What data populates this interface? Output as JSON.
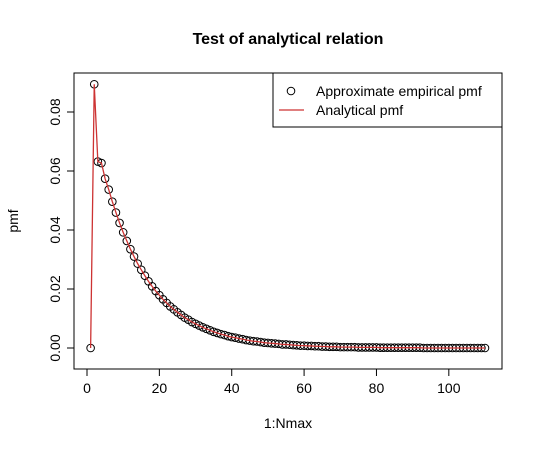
{
  "chart_data": {
    "type": "scatter",
    "title": "Test of analytical relation",
    "xlabel": "1:Nmax",
    "ylabel": "pmf",
    "xlim": [
      0,
      110
    ],
    "ylim": [
      0,
      0.09
    ],
    "xticks": [
      "0",
      "20",
      "40",
      "60",
      "80",
      "100"
    ],
    "yticks": [
      "0.00",
      "0.02",
      "0.04",
      "0.06",
      "0.08"
    ],
    "legend": {
      "placement": "top-right",
      "entries": [
        "Approximate empirical pmf",
        "Analytical pmf"
      ]
    },
    "series": [
      {
        "name": "Approximate empirical pmf",
        "marker": "open-circle",
        "color": "#000000",
        "x": [
          1,
          2,
          3,
          4,
          5,
          6,
          7,
          8,
          9,
          10,
          11,
          12,
          13,
          14,
          15,
          16,
          17,
          18,
          19,
          20,
          21,
          22,
          23,
          24,
          25,
          26,
          27,
          28,
          29,
          30,
          31,
          32,
          33,
          34,
          35,
          36,
          37,
          38,
          39,
          40,
          41,
          42,
          43,
          44,
          45,
          46,
          47,
          48,
          49,
          50,
          51,
          52,
          53,
          54,
          55,
          56,
          57,
          58,
          59,
          60,
          61,
          62,
          63,
          64,
          65,
          66,
          67,
          68,
          69,
          70,
          71,
          72,
          73,
          74,
          75,
          76,
          77,
          78,
          79,
          80,
          81,
          82,
          83,
          84,
          85,
          86,
          87,
          88,
          89,
          90,
          91,
          92,
          93,
          94,
          95,
          96,
          97,
          98,
          99,
          100,
          101,
          102,
          103,
          104,
          105,
          106,
          107,
          108,
          109,
          110
        ],
        "y": [
          0,
          0.0894,
          0.0632,
          0.0627,
          0.0574,
          0.0537,
          0.0496,
          0.0459,
          0.0424,
          0.0392,
          0.0363,
          0.0335,
          0.031,
          0.0286,
          0.0265,
          0.0245,
          0.0226,
          0.0209,
          0.0193,
          0.0179,
          0.0165,
          0.0153,
          0.0141,
          0.0131,
          0.0121,
          0.0112,
          0.0103,
          0.0096,
          0.0088,
          0.0082,
          0.0076,
          0.007,
          0.0065,
          0.006,
          0.0055,
          0.0051,
          0.0047,
          0.0044,
          0.004,
          0.0037,
          0.0035,
          0.0032,
          0.003,
          0.0027,
          0.0025,
          0.0023,
          0.0022,
          0.002,
          0.0018,
          0.0017,
          0.0016,
          0.0015,
          0.0014,
          0.0012,
          0.0012,
          0.0011,
          0.001,
          0.0009,
          0.0008,
          0.0008,
          0.0007,
          0.0007,
          0.0006,
          0.0006,
          0.0005,
          0.0005,
          0.0004,
          0.0004,
          0.0004,
          0.0003,
          0.0003,
          0.0003,
          0.0003,
          0.0003,
          0.0002,
          0.0002,
          0.0002,
          0.0002,
          0.0002,
          0.0002,
          0.0001,
          0.0001,
          0.0001,
          0.0001,
          0.0001,
          0.0001,
          0.0001,
          0.0001,
          0.0001,
          0.0001,
          0.0001,
          0.0001,
          0,
          0,
          0,
          0,
          0,
          0,
          0,
          0,
          0,
          0,
          0,
          0,
          0,
          0,
          0,
          0,
          0,
          0
        ]
      },
      {
        "name": "Analytical pmf",
        "marker": "line",
        "color": "#cd3333",
        "x": [
          1,
          2,
          3,
          4,
          5,
          6,
          7,
          8,
          9,
          10,
          11,
          12,
          13,
          14,
          15,
          16,
          17,
          18,
          19,
          20,
          21,
          22,
          23,
          24,
          25,
          26,
          27,
          28,
          29,
          30,
          31,
          32,
          33,
          34,
          35,
          36,
          37,
          38,
          39,
          40,
          41,
          42,
          43,
          44,
          45,
          46,
          47,
          48,
          49,
          50,
          51,
          52,
          53,
          54,
          55,
          56,
          57,
          58,
          59,
          60,
          61,
          62,
          63,
          64,
          65,
          66,
          67,
          68,
          69,
          70,
          71,
          72,
          73,
          74,
          75,
          76,
          77,
          78,
          79,
          80,
          81,
          82,
          83,
          84,
          85,
          86,
          87,
          88,
          89,
          90,
          91,
          92,
          93,
          94,
          95,
          96,
          97,
          98,
          99,
          100,
          101,
          102,
          103,
          104,
          105,
          106,
          107,
          108,
          109,
          110
        ],
        "y": [
          0,
          0.0894,
          0.0632,
          0.0627,
          0.0574,
          0.0537,
          0.0496,
          0.0459,
          0.0424,
          0.0392,
          0.0363,
          0.0335,
          0.031,
          0.0286,
          0.0265,
          0.0245,
          0.0226,
          0.0209,
          0.0193,
          0.0179,
          0.0165,
          0.0153,
          0.0141,
          0.0131,
          0.0121,
          0.0112,
          0.0103,
          0.0096,
          0.0088,
          0.0082,
          0.0076,
          0.007,
          0.0065,
          0.006,
          0.0055,
          0.0051,
          0.0047,
          0.0044,
          0.004,
          0.0037,
          0.0035,
          0.0032,
          0.003,
          0.0027,
          0.0025,
          0.0023,
          0.0022,
          0.002,
          0.0018,
          0.0017,
          0.0016,
          0.0015,
          0.0014,
          0.0012,
          0.0012,
          0.0011,
          0.001,
          0.0009,
          0.0008,
          0.0008,
          0.0007,
          0.0007,
          0.0006,
          0.0006,
          0.0005,
          0.0005,
          0.0004,
          0.0004,
          0.0004,
          0.0003,
          0.0003,
          0.0003,
          0.0003,
          0.0003,
          0.0002,
          0.0002,
          0.0002,
          0.0002,
          0.0002,
          0.0002,
          0.0001,
          0.0001,
          0.0001,
          0.0001,
          0.0001,
          0.0001,
          0.0001,
          0.0001,
          0.0001,
          0.0001,
          0.0001,
          0.0001,
          0,
          0,
          0,
          0,
          0,
          0,
          0,
          0,
          0,
          0,
          0,
          0,
          0,
          0,
          0,
          0,
          0,
          0
        ]
      }
    ]
  }
}
